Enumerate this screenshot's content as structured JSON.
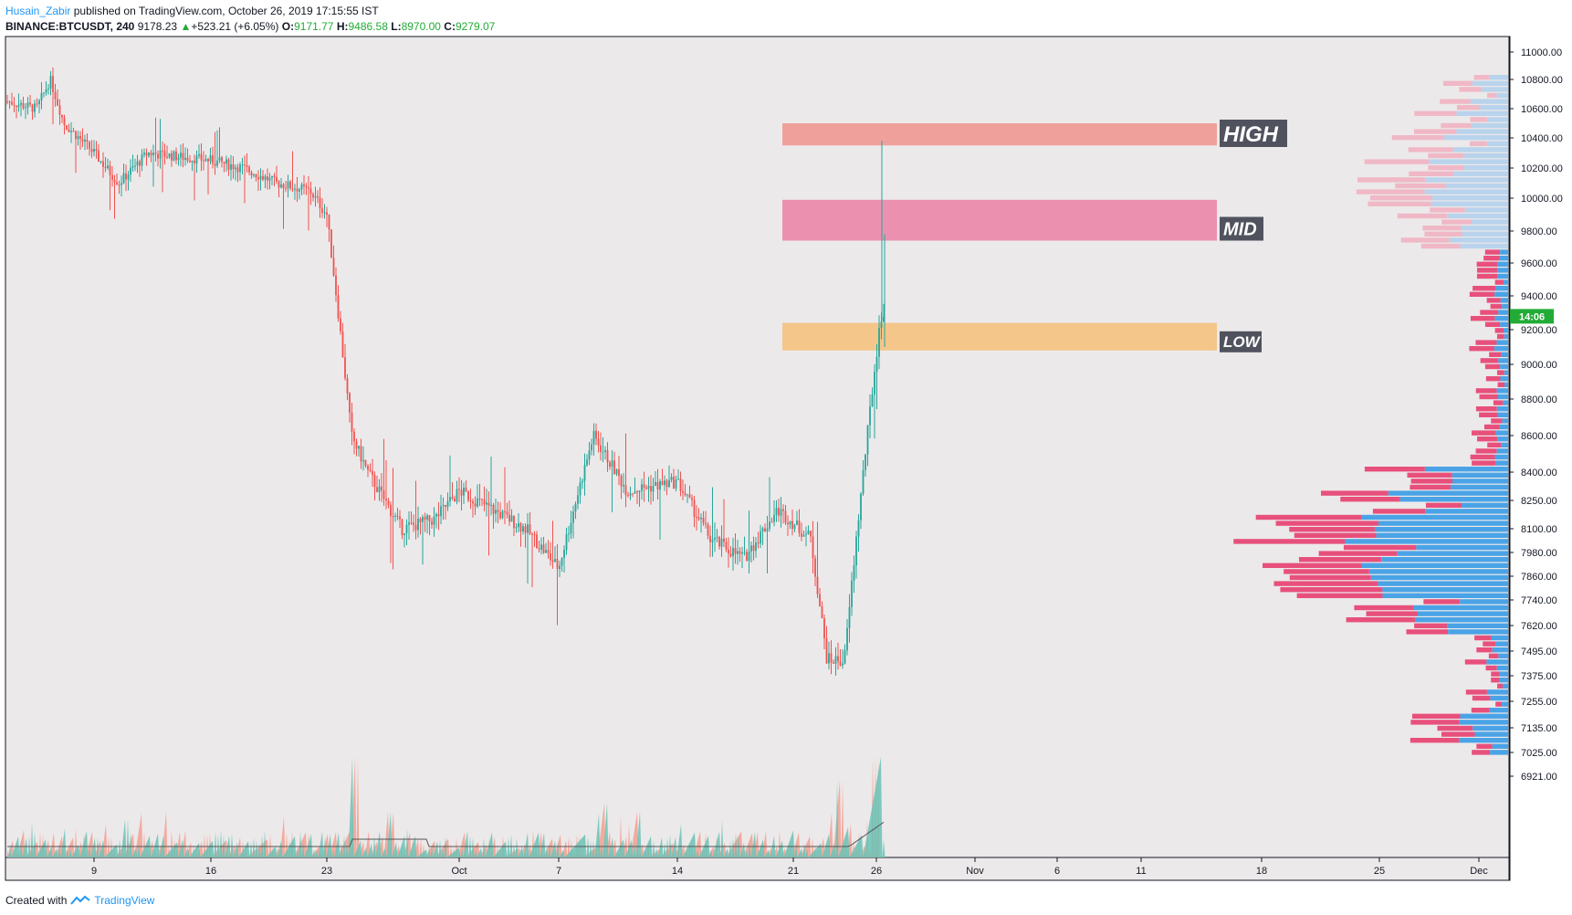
{
  "header": {
    "user": "Husain_Zabir",
    "published_text": "published on TradingView.com, October 26, 2019 17:15:55 IST",
    "symbol": "BINANCE:BTCUSDT, 240",
    "last": "9178.23",
    "change_arrow": "▲",
    "change": "+523.21 (+6.05%)",
    "o_label": "O:",
    "o": "9171.77",
    "h_label": "H:",
    "h": "9486.58",
    "l_label": "L:",
    "l": "8970.00",
    "c_label": "C:",
    "c": "9279.07"
  },
  "footer": {
    "created_with": "Created with",
    "brand": "TradingView"
  },
  "price_tag": {
    "value": "14:06",
    "price": 9279,
    "color": "#22ab36"
  },
  "colors": {
    "bull": "#26a69a",
    "bear": "#ef5350",
    "bg": "#ece9ea",
    "axis": "#131722"
  },
  "chart_data": {
    "type": "candlestick",
    "symbol": "BINANCE:BTCUSDT",
    "interval": "240",
    "y_axis_ticks": [
      11000,
      10800,
      10600,
      10400,
      10200,
      10000,
      9800,
      9600,
      9400,
      9200,
      9000,
      8800,
      8600,
      8400,
      8250,
      8100,
      7980,
      7860,
      7740,
      7620,
      7495,
      7375,
      7255,
      7135,
      7025,
      6921
    ],
    "y_axis_labels": [
      "11000.00",
      "10800.00",
      "10600.00",
      "10400.00",
      "10200.00",
      "10000.00",
      "9800.00",
      "9600.00",
      "9400.00",
      "9200.00",
      "9000.00",
      "8800.00",
      "8600.00",
      "8400.00",
      "8250.00",
      "8100.00",
      "7980.00",
      "7860.00",
      "7740.00",
      "7620.00",
      "7495.00",
      "7375.00",
      "7255.00",
      "7135.00",
      "7025.00",
      "6921.00"
    ],
    "x_axis_labels": [
      "9",
      "16",
      "23",
      "Oct",
      "7",
      "14",
      "21",
      "26",
      "Nov",
      "6",
      "11",
      "18",
      "25",
      "Dec"
    ],
    "price_path": [
      {
        "date": "Sep 5",
        "close": 10600
      },
      {
        "date": "Sep 6",
        "close": 10800
      },
      {
        "date": "Sep 7",
        "close": 10500
      },
      {
        "date": "Sep 9",
        "close": 10300
      },
      {
        "date": "Sep 11",
        "close": 10100
      },
      {
        "date": "Sep 13",
        "close": 10300
      },
      {
        "date": "Sep 16",
        "close": 10250
      },
      {
        "date": "Sep 18",
        "close": 10200
      },
      {
        "date": "Sep 20",
        "close": 10100
      },
      {
        "date": "Sep 22",
        "close": 10050
      },
      {
        "date": "Sep 23",
        "close": 9900
      },
      {
        "date": "Sep 24",
        "close": 8600
      },
      {
        "date": "Sep 25",
        "close": 8400
      },
      {
        "date": "Sep 27",
        "close": 8100
      },
      {
        "date": "Sep 29",
        "close": 8150
      },
      {
        "date": "Oct 1",
        "close": 8300
      },
      {
        "date": "Oct 3",
        "close": 8200
      },
      {
        "date": "Oct 5",
        "close": 8100
      },
      {
        "date": "Oct 7",
        "close": 7900
      },
      {
        "date": "Oct 9",
        "close": 8600
      },
      {
        "date": "Oct 11",
        "close": 8300
      },
      {
        "date": "Oct 14",
        "close": 8350
      },
      {
        "date": "Oct 16",
        "close": 8050
      },
      {
        "date": "Oct 18",
        "close": 7950
      },
      {
        "date": "Oct 20",
        "close": 8200
      },
      {
        "date": "Oct 22",
        "close": 8050
      },
      {
        "date": "Oct 23",
        "close": 7450
      },
      {
        "date": "Oct 24",
        "close": 7450
      },
      {
        "date": "Oct 25",
        "close": 8600
      },
      {
        "date": "Oct 26",
        "close": 9279
      }
    ],
    "zones": [
      {
        "label": "HIGH",
        "from": 10350,
        "to": 10500,
        "color": "#f0a09a"
      },
      {
        "label": "MID",
        "from": 9740,
        "to": 9990,
        "color": "#eb91af"
      },
      {
        "label": "LOW",
        "from": 9080,
        "to": 9240,
        "color": "#f4c68a"
      }
    ],
    "grid": false,
    "volume_profile": true
  }
}
